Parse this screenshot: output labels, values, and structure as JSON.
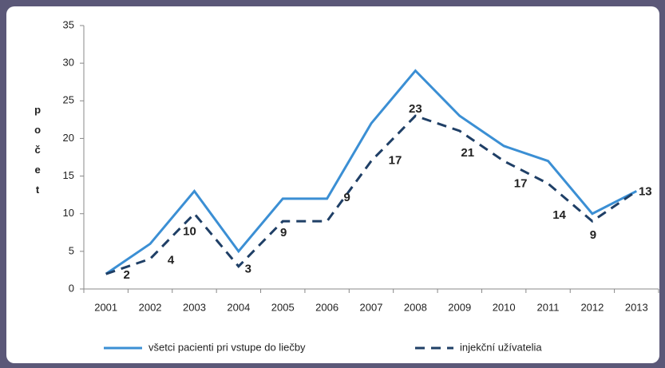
{
  "chart_data": {
    "type": "line",
    "ylabel": "počet",
    "categories": [
      "2001",
      "2002",
      "2003",
      "2004",
      "2005",
      "2006",
      "2007",
      "2008",
      "2009",
      "2010",
      "2011",
      "2012",
      "2013"
    ],
    "series": [
      {
        "name": "všetci pacienti pri vstupe do liečby",
        "color": "#3b8fd4",
        "dash": false,
        "values": [
          2,
          6,
          13,
          5,
          12,
          12,
          22,
          29,
          23,
          19,
          17,
          10,
          13
        ]
      },
      {
        "name": "injekční užívatelia",
        "color": "#1f3f66",
        "dash": true,
        "values": [
          2,
          4,
          10,
          3,
          9,
          9,
          17,
          23,
          21,
          17,
          14,
          9,
          13
        ]
      }
    ],
    "ylim": [
      0,
      35
    ],
    "yticks": [
      0,
      5,
      10,
      15,
      20,
      25,
      30,
      35
    ],
    "grid": false,
    "legend": "bottom"
  }
}
